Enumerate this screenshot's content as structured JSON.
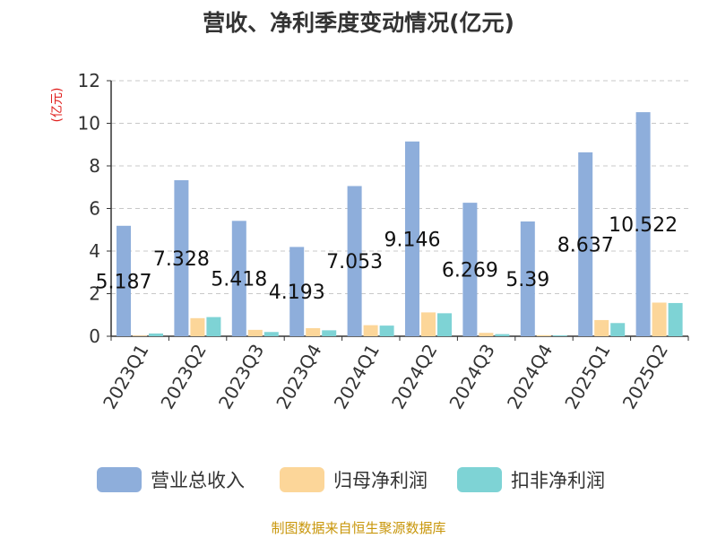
{
  "title": "营收、净利季度变动情况(亿元)",
  "source": "制图数据来自恒生聚源数据库",
  "chart_data": {
    "type": "bar",
    "title": "营收、净利季度变动情况(亿元)",
    "ylabel": "(亿元)",
    "xlabel": "",
    "ylim": [
      0,
      12
    ],
    "yticks": [
      0,
      2,
      4,
      6,
      8,
      10,
      12
    ],
    "grid": true,
    "legend_position": "bottom",
    "categories": [
      "2023Q1",
      "2023Q2",
      "2023Q3",
      "2023Q4",
      "2024Q1",
      "2024Q2",
      "2024Q3",
      "2024Q4",
      "2025Q1",
      "2025Q2"
    ],
    "series": [
      {
        "name": "营业总收入",
        "color": "#8eaedb",
        "values": [
          5.187,
          7.328,
          5.418,
          4.193,
          7.053,
          9.146,
          6.269,
          5.39,
          8.637,
          10.522
        ]
      },
      {
        "name": "归母净利润",
        "color": "#fcd699",
        "values": [
          0.03,
          0.85,
          0.3,
          0.38,
          0.52,
          1.12,
          0.16,
          0.05,
          0.76,
          1.58
        ]
      },
      {
        "name": "扣非净利润",
        "color": "#7ed3d5",
        "values": [
          0.13,
          0.9,
          0.2,
          0.28,
          0.5,
          1.08,
          0.1,
          0.04,
          0.62,
          1.56
        ]
      }
    ],
    "data_labels": [
      "5.187",
      "7.328",
      "5.418",
      "4.193",
      "7.053",
      "9.146",
      "6.269",
      "5.39",
      "8.637",
      "10.522"
    ]
  }
}
